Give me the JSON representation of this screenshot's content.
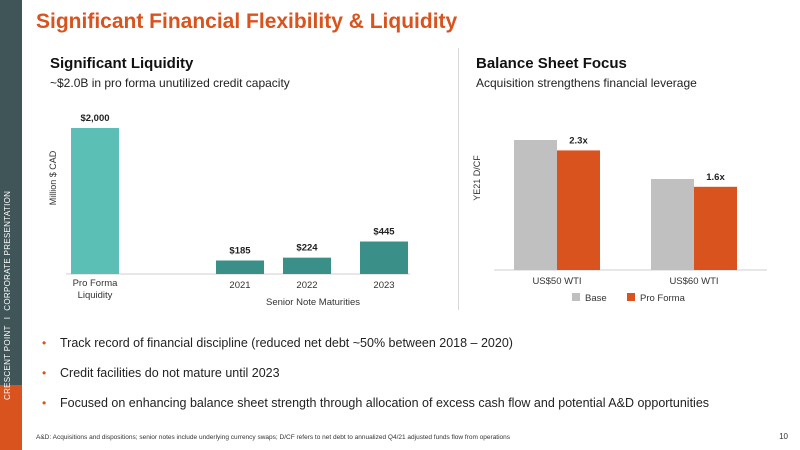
{
  "sidebar": {
    "company": "CRESCENT POINT",
    "separator": "I",
    "presentation": "CORPORATE PRESENTATION"
  },
  "title": "Significant Financial Flexibility & Liquidity",
  "left_panel": {
    "title": "Significant Liquidity",
    "subtitle": "~$2.0B in pro forma unutilized credit capacity"
  },
  "right_panel": {
    "title": "Balance Sheet Focus",
    "subtitle": "Acquisition strengthens financial leverage"
  },
  "chart_data": [
    {
      "type": "bar",
      "ylabel": "Million $ CAD",
      "xlabel": "Senior Note Maturities",
      "categories": [
        "Pro Forma Liquidity",
        "2021",
        "2022",
        "2023"
      ],
      "values": [
        2000,
        185,
        224,
        445
      ],
      "data_labels": [
        "$2,000",
        "$185",
        "$224",
        "$445"
      ],
      "colors": [
        "#5bbfb6",
        "#3a8f88",
        "#3a8f88",
        "#3a8f88"
      ],
      "grid": false
    },
    {
      "type": "bar",
      "ylabel": "YE21 D/CF",
      "categories": [
        "US$50 WTI",
        "US$60 WTI"
      ],
      "series": [
        {
          "name": "Base",
          "values": [
            2.5,
            1.75
          ],
          "color": "#c0c0c0"
        },
        {
          "name": "Pro Forma",
          "values": [
            2.3,
            1.6
          ],
          "color": "#d9531e",
          "data_labels": [
            "2.3x",
            "1.6x"
          ]
        }
      ],
      "legend": "bottom",
      "grid": false
    }
  ],
  "bullets": [
    "Track record of financial discipline (reduced net debt ~50% between 2018 – 2020)",
    "Credit facilities do not mature until 2023",
    "Focused on enhancing balance sheet strength through allocation of excess cash flow and potential A&D opportunities"
  ],
  "bullet_marker": "•",
  "footnote": "A&D: Acquisitions and dispositions; senior notes include underlying currency swaps; D/CF refers to net debt to annualized Q4/21 adjusted funds flow from operations",
  "page_number": "10"
}
